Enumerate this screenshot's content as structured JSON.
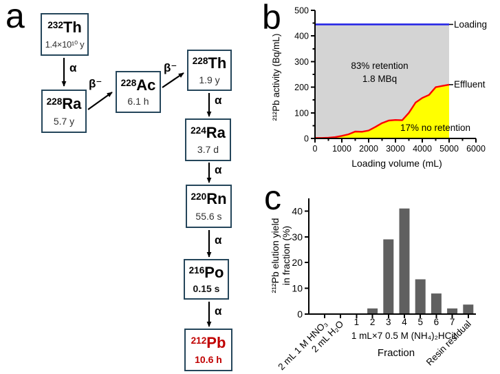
{
  "panels": {
    "a": "a",
    "b": "b",
    "c": "c"
  },
  "decay_chain": {
    "box_border_color": "#24455a",
    "highlight_color": "#c00000",
    "nuclides": [
      {
        "mass": "232",
        "symbol": "Th",
        "halflife": "1.4×10¹⁰ y"
      },
      {
        "mass": "228",
        "symbol": "Ra",
        "halflife": "5.7 y"
      },
      {
        "mass": "228",
        "symbol": "Ac",
        "halflife": "6.1 h"
      },
      {
        "mass": "228",
        "symbol": "Th",
        "halflife": "1.9 y"
      },
      {
        "mass": "224",
        "symbol": "Ra",
        "halflife": "3.7 d"
      },
      {
        "mass": "220",
        "symbol": "Rn",
        "halflife": "55.6 s"
      },
      {
        "mass": "216",
        "symbol": "Po",
        "halflife": "0.15 s"
      },
      {
        "mass": "212",
        "symbol": "Pb",
        "halflife": "10.6 h"
      }
    ],
    "decays": [
      "α",
      "β⁻",
      "β⁻",
      "α",
      "α",
      "α",
      "α"
    ]
  },
  "chart_data": [
    {
      "id": "b",
      "type": "area",
      "xlabel": "Loading volume (mL)",
      "ylabel": "²¹²Pb activity (Bq/mL)",
      "xlim": [
        0,
        6000
      ],
      "xstep": 1000,
      "xminor": 500,
      "ylim": [
        0,
        500
      ],
      "ystep": 100,
      "yminor": 50,
      "grid": false,
      "loading_line": {
        "label": "Loading",
        "value": 445,
        "x_end": 5000,
        "color": "#2626e6"
      },
      "effluent_series": {
        "label": "Effluent",
        "color": "#ff0000",
        "x": [
          0,
          250,
          500,
          750,
          1000,
          1250,
          1500,
          1750,
          2000,
          2250,
          2500,
          2750,
          3000,
          3250,
          3500,
          3750,
          4000,
          4250,
          4500,
          4750,
          5000
        ],
        "y": [
          2,
          2,
          3,
          5,
          10,
          16,
          27,
          26,
          31,
          45,
          60,
          70,
          72,
          71,
          100,
          140,
          158,
          170,
          200,
          205,
          210
        ]
      },
      "fill_between_color": "#d4d4d4",
      "fill_below_color": "#ffff00",
      "annotations": [
        {
          "text": "83% retention"
        },
        {
          "text": "1.8 MBq"
        },
        {
          "text": "17% no retention"
        }
      ]
    },
    {
      "id": "c",
      "type": "bar",
      "ylabel_line1": "²¹²Pb elution yield",
      "ylabel_line2": "in fraction (%)",
      "xlabel": "Fraction",
      "group_label": "1 mL×7 0.5 M (NH₄)₂HCit",
      "ylim": [
        0,
        45
      ],
      "ystep": 10,
      "bar_color": "#606060",
      "categories": [
        "2 mL 1 M HNO₃",
        "2 mL H₂O",
        "1",
        "2",
        "3",
        "4",
        "5",
        "6",
        "7",
        "Resin residual"
      ],
      "rotated_labels": [
        true,
        true,
        false,
        false,
        false,
        false,
        false,
        false,
        false,
        true
      ],
      "values": [
        0,
        0,
        0,
        2.2,
        29,
        41,
        13.5,
        8,
        2.2,
        3.7
      ]
    }
  ]
}
